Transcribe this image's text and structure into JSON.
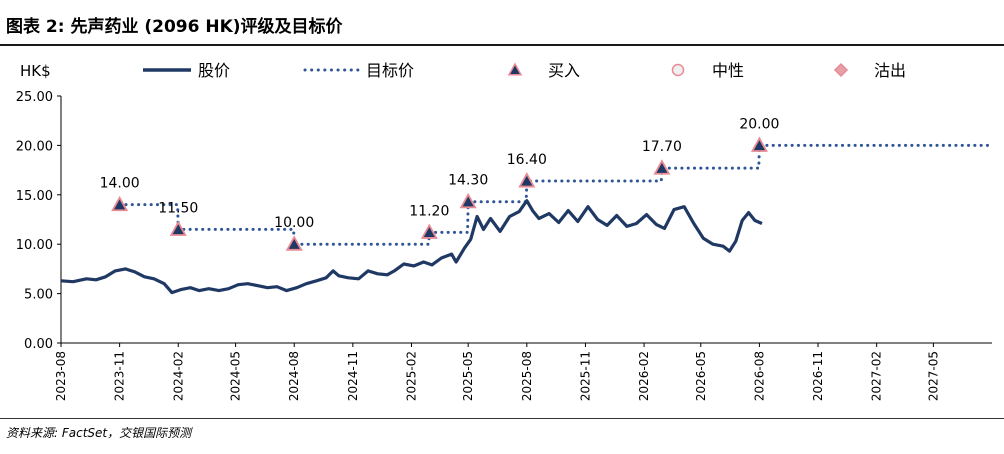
{
  "title": "图表 2: 先声药业 (2096 HK)评级及目标价",
  "source": "资料来源: FactSet，交银国际预测",
  "colors": {
    "price_line": "#1f3864",
    "target_line": "#2e5597",
    "marker_fill": "#1f3864",
    "marker_stroke": "#e88a94",
    "neutral_fill": "#f0f0f0",
    "sell_fill": "#e8a0a8"
  },
  "chart_data": {
    "type": "line",
    "ylabel": "HK$",
    "ylim": [
      0,
      25
    ],
    "yticks": [
      "0.00",
      "5.00",
      "10.00",
      "15.00",
      "20.00",
      "25.00"
    ],
    "x_categories": [
      "2023-08",
      "2023-11",
      "2024-02",
      "2024-05",
      "2024-08",
      "2024-11",
      "2025-02",
      "2025-05",
      "2025-08",
      "2025-11",
      "2026-02",
      "2026-05",
      "2026-08",
      "2026-11",
      "2027-02",
      "2027-05"
    ],
    "xlim": [
      "2023-08-01",
      "2027-08-01"
    ],
    "legend": [
      {
        "label": "股价",
        "kind": "price"
      },
      {
        "label": "目标价",
        "kind": "target"
      },
      {
        "label": "买入",
        "kind": "buy"
      },
      {
        "label": "中性",
        "kind": "neutral"
      },
      {
        "label": "沽出",
        "kind": "sell"
      }
    ],
    "series": [
      {
        "name": "股价",
        "points": [
          [
            "2023-08-01",
            6.3
          ],
          [
            "2023-08-20",
            6.2
          ],
          [
            "2023-09-10",
            6.5
          ],
          [
            "2023-09-25",
            6.4
          ],
          [
            "2023-10-10",
            6.7
          ],
          [
            "2023-10-25",
            7.3
          ],
          [
            "2023-11-10",
            7.5
          ],
          [
            "2023-11-25",
            7.2
          ],
          [
            "2023-12-10",
            6.7
          ],
          [
            "2023-12-25",
            6.5
          ],
          [
            "2024-01-10",
            6.0
          ],
          [
            "2024-01-22",
            5.1
          ],
          [
            "2024-02-05",
            5.4
          ],
          [
            "2024-02-20",
            5.6
          ],
          [
            "2024-03-05",
            5.3
          ],
          [
            "2024-03-20",
            5.5
          ],
          [
            "2024-04-05",
            5.3
          ],
          [
            "2024-04-20",
            5.5
          ],
          [
            "2024-05-05",
            5.9
          ],
          [
            "2024-05-20",
            6.0
          ],
          [
            "2024-06-05",
            5.8
          ],
          [
            "2024-06-20",
            5.6
          ],
          [
            "2024-07-05",
            5.7
          ],
          [
            "2024-07-20",
            5.3
          ],
          [
            "2024-08-05",
            5.6
          ],
          [
            "2024-08-20",
            6.0
          ],
          [
            "2024-09-05",
            6.3
          ],
          [
            "2024-09-20",
            6.6
          ],
          [
            "2024-10-01",
            7.3
          ],
          [
            "2024-10-10",
            6.8
          ],
          [
            "2024-10-25",
            6.6
          ],
          [
            "2024-11-10",
            6.5
          ],
          [
            "2024-11-25",
            7.3
          ],
          [
            "2024-12-10",
            7.0
          ],
          [
            "2024-12-25",
            6.9
          ],
          [
            "2025-01-05",
            7.3
          ],
          [
            "2025-01-20",
            8.0
          ],
          [
            "2025-02-05",
            7.8
          ],
          [
            "2025-02-20",
            8.2
          ],
          [
            "2025-03-05",
            7.9
          ],
          [
            "2025-03-20",
            8.6
          ],
          [
            "2025-04-05",
            9.0
          ],
          [
            "2025-04-12",
            8.2
          ],
          [
            "2025-04-25",
            9.6
          ],
          [
            "2025-05-05",
            10.5
          ],
          [
            "2025-05-15",
            12.8
          ],
          [
            "2025-05-25",
            11.5
          ],
          [
            "2025-06-05",
            12.6
          ],
          [
            "2025-06-20",
            11.3
          ],
          [
            "2025-07-05",
            12.8
          ],
          [
            "2025-07-20",
            13.3
          ],
          [
            "2025-08-01",
            14.4
          ],
          [
            "2025-08-10",
            13.4
          ],
          [
            "2025-08-20",
            12.6
          ],
          [
            "2025-09-05",
            13.1
          ],
          [
            "2025-09-20",
            12.2
          ],
          [
            "2025-10-05",
            13.4
          ],
          [
            "2025-10-20",
            12.3
          ],
          [
            "2025-11-05",
            13.8
          ],
          [
            "2025-11-20",
            12.5
          ],
          [
            "2025-12-05",
            11.9
          ],
          [
            "2025-12-20",
            12.9
          ],
          [
            "2026-01-05",
            11.8
          ],
          [
            "2026-01-20",
            12.1
          ],
          [
            "2026-02-05",
            13.0
          ],
          [
            "2026-02-20",
            12.0
          ],
          [
            "2026-03-05",
            11.6
          ],
          [
            "2026-03-20",
            13.5
          ],
          [
            "2026-04-05",
            13.8
          ],
          [
            "2026-04-20",
            12.1
          ],
          [
            "2026-05-05",
            10.6
          ],
          [
            "2026-05-20",
            10.0
          ],
          [
            "2026-06-05",
            9.8
          ],
          [
            "2026-06-15",
            9.3
          ],
          [
            "2026-06-25",
            10.3
          ],
          [
            "2026-07-05",
            12.4
          ],
          [
            "2026-07-15",
            13.2
          ],
          [
            "2026-07-25",
            12.4
          ],
          [
            "2026-08-05",
            12.1
          ]
        ]
      },
      {
        "name": "目标价",
        "steps": [
          [
            "2023-11-01",
            "2024-01-31",
            14.0
          ],
          [
            "2024-02-01",
            "2024-07-31",
            11.5
          ],
          [
            "2024-08-01",
            "2025-02-28",
            10.0
          ],
          [
            "2025-03-01",
            "2025-04-30",
            11.2
          ],
          [
            "2025-05-01",
            "2025-07-31",
            14.3
          ],
          [
            "2025-08-01",
            "2026-02-28",
            16.4
          ],
          [
            "2026-03-01",
            "2026-07-31",
            17.7
          ],
          [
            "2026-08-01",
            "2027-08-01",
            20.0
          ]
        ]
      }
    ],
    "ratings": [
      {
        "date": "2023-11-01",
        "value": 14.0,
        "label": "14.00",
        "rating": "buy"
      },
      {
        "date": "2024-02-01",
        "value": 11.5,
        "label": "11.50",
        "rating": "buy"
      },
      {
        "date": "2024-08-01",
        "value": 10.0,
        "label": "10.00",
        "rating": "buy"
      },
      {
        "date": "2025-03-01",
        "value": 11.2,
        "label": "11.20",
        "rating": "buy"
      },
      {
        "date": "2025-05-01",
        "value": 14.3,
        "label": "14.30",
        "rating": "buy"
      },
      {
        "date": "2025-08-01",
        "value": 16.4,
        "label": "16.40",
        "rating": "buy"
      },
      {
        "date": "2026-03-01",
        "value": 17.7,
        "label": "17.70",
        "rating": "buy"
      },
      {
        "date": "2026-08-01",
        "value": 20.0,
        "label": "20.00",
        "rating": "buy"
      }
    ]
  }
}
